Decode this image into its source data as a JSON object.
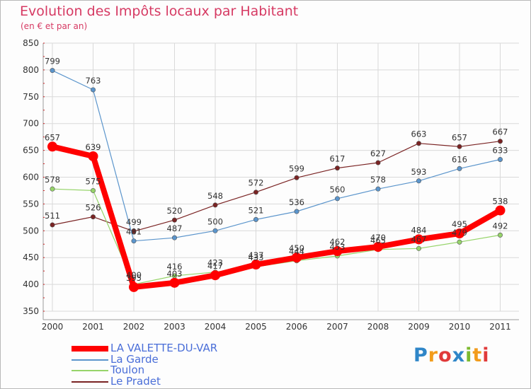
{
  "title": "Evolution des Impôts locaux par Habitant",
  "subtitle": "(en € et par an)",
  "brand": {
    "letters": [
      "P",
      "r",
      "o",
      "x",
      "i",
      "t",
      "i"
    ],
    "colors": [
      "#2f86c8",
      "#f29c1c",
      "#e03a3a",
      "#2f86c8",
      "#7cba2e",
      "#f29c1c",
      "#e03a3a"
    ]
  },
  "chart_data": {
    "type": "line",
    "title": "Evolution des Impôts locaux par Habitant",
    "subtitle": "(en € et par an)",
    "x": [
      "2000",
      "2001",
      "2002",
      "2003",
      "2004",
      "2005",
      "2006",
      "2007",
      "2008",
      "2009",
      "2010",
      "2011"
    ],
    "ylim": [
      350,
      850
    ],
    "yticks": [
      350,
      400,
      450,
      500,
      550,
      600,
      650,
      700,
      750,
      800,
      850
    ],
    "grid": true,
    "legend_position": "bottom-left",
    "series": [
      {
        "name": "LA VALETTE-DU-VAR",
        "color": "#ff0000",
        "width": 8,
        "marker": 7,
        "values": [
          657,
          639,
          395,
          403,
          417,
          437,
          450,
          462,
          470,
          484,
          495,
          538
        ],
        "labels": [
          "657",
          "639",
          "395",
          "403",
          "417",
          "437",
          "450",
          "462",
          "470",
          "484",
          "495",
          "538"
        ]
      },
      {
        "name": "La Garde",
        "color": "#5b95cc",
        "width": 1.2,
        "marker": 3.2,
        "values": [
          799,
          763,
          481,
          487,
          500,
          521,
          536,
          560,
          578,
          593,
          616,
          633
        ],
        "labels": [
          "799",
          "763",
          "481",
          "487",
          "500",
          "521",
          "536",
          "560",
          "578",
          "593",
          "616",
          "633"
        ]
      },
      {
        "name": "Toulon",
        "color": "#96d46a",
        "width": 1.2,
        "marker": 3.2,
        "values": [
          578,
          575,
          400,
          416,
          423,
          433,
          444,
          453,
          465,
          467,
          479,
          492
        ],
        "labels": [
          "578",
          "575",
          "400",
          "416",
          "423",
          "433",
          "444",
          "453",
          "465",
          "467",
          "479",
          "492"
        ]
      },
      {
        "name": "Le Pradet",
        "color": "#7a2323",
        "width": 1.2,
        "marker": 3.2,
        "values": [
          511,
          526,
          499,
          520,
          548,
          572,
          599,
          617,
          627,
          663,
          657,
          667
        ],
        "labels": [
          "511",
          "526",
          "499",
          "520",
          "548",
          "572",
          "599",
          "617",
          "627",
          "663",
          "657",
          "667"
        ]
      }
    ]
  }
}
